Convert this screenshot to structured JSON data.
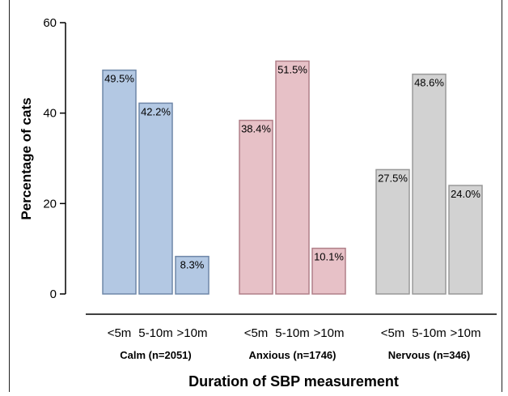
{
  "chart_data": {
    "type": "bar",
    "ylabel": "Percentage of cats",
    "xlabel": "Duration of SBP measurement",
    "ylim": [
      0,
      60
    ],
    "yticks": [
      0,
      20,
      40,
      60
    ],
    "grid": false,
    "legend": "none",
    "categories": [
      "<5m",
      "5-10m",
      ">10m"
    ],
    "groups": [
      {
        "name": "Calm (n=2051)",
        "fill": "#b3c8e3",
        "stroke": "#6f87a8",
        "values": [
          49.5,
          42.2,
          8.3
        ],
        "labels": [
          "49.5%",
          "42.2%",
          "8.3%"
        ]
      },
      {
        "name": "Anxious (n=1746)",
        "fill": "#e7c1c7",
        "stroke": "#b07f88",
        "values": [
          38.4,
          51.5,
          10.1
        ],
        "labels": [
          "38.4%",
          "51.5%",
          "10.1%"
        ]
      },
      {
        "name": "Nervous (n=346)",
        "fill": "#d2d2d2",
        "stroke": "#999999",
        "values": [
          27.5,
          48.6,
          24.0
        ],
        "labels": [
          "27.5%",
          "48.6%",
          "24.0%"
        ]
      }
    ]
  }
}
